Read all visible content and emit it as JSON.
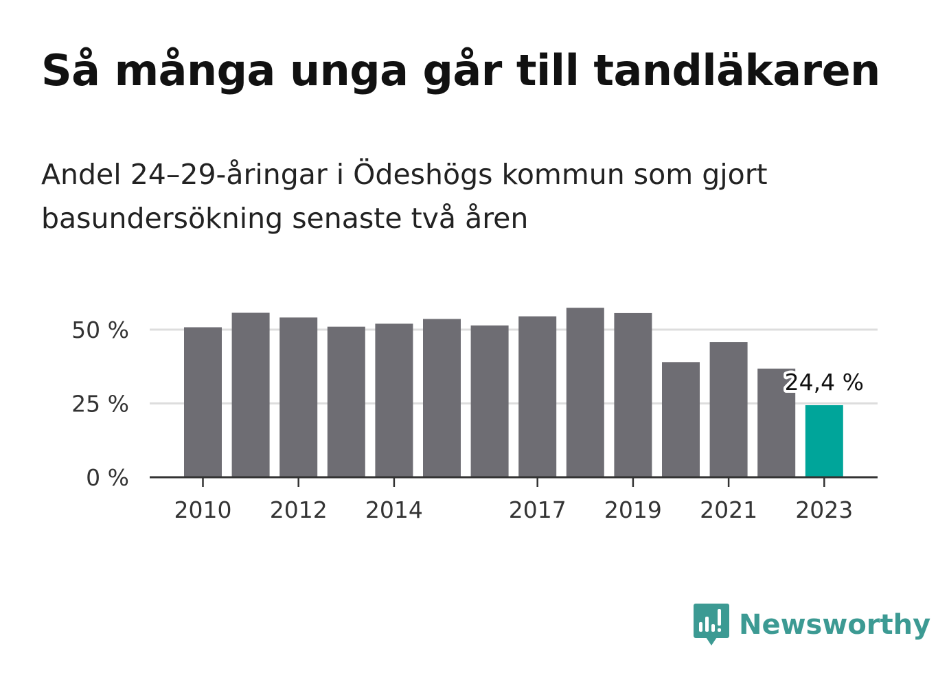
{
  "header": {
    "title": "Så många unga går till tandläkaren",
    "subtitle": "Andel 24–29-åringar i Ödeshögs kommun som gjort basundersökning senaste två åren"
  },
  "chart_data": {
    "type": "bar",
    "categories": [
      "2010",
      "2011",
      "2012",
      "2013",
      "2014",
      "2015",
      "2016",
      "2017",
      "2018",
      "2019",
      "2020",
      "2021",
      "2022",
      "2023"
    ],
    "values": [
      50.8,
      55.7,
      54.1,
      51.0,
      52.0,
      53.6,
      51.4,
      54.5,
      57.4,
      55.6,
      39.0,
      45.8,
      36.8,
      24.4
    ],
    "x_tick_labels": [
      "2010",
      "2012",
      "2014",
      "2017",
      "2019",
      "2021",
      "2023"
    ],
    "y_ticks": [
      0,
      25,
      50
    ],
    "y_tick_labels": [
      "0 %",
      "25 %",
      "50 %"
    ],
    "ylim": [
      0,
      58
    ],
    "grid": true,
    "highlight_index": 13,
    "highlight_label": "24,4 %",
    "colors": {
      "bar": "#6e6d73",
      "highlight": "#00a59a",
      "grid": "#dddddd",
      "axis": "#333333"
    }
  },
  "branding": {
    "name": "Newsworthy",
    "icon": "newsworthy-logo-icon",
    "color": "#3c9a93"
  }
}
